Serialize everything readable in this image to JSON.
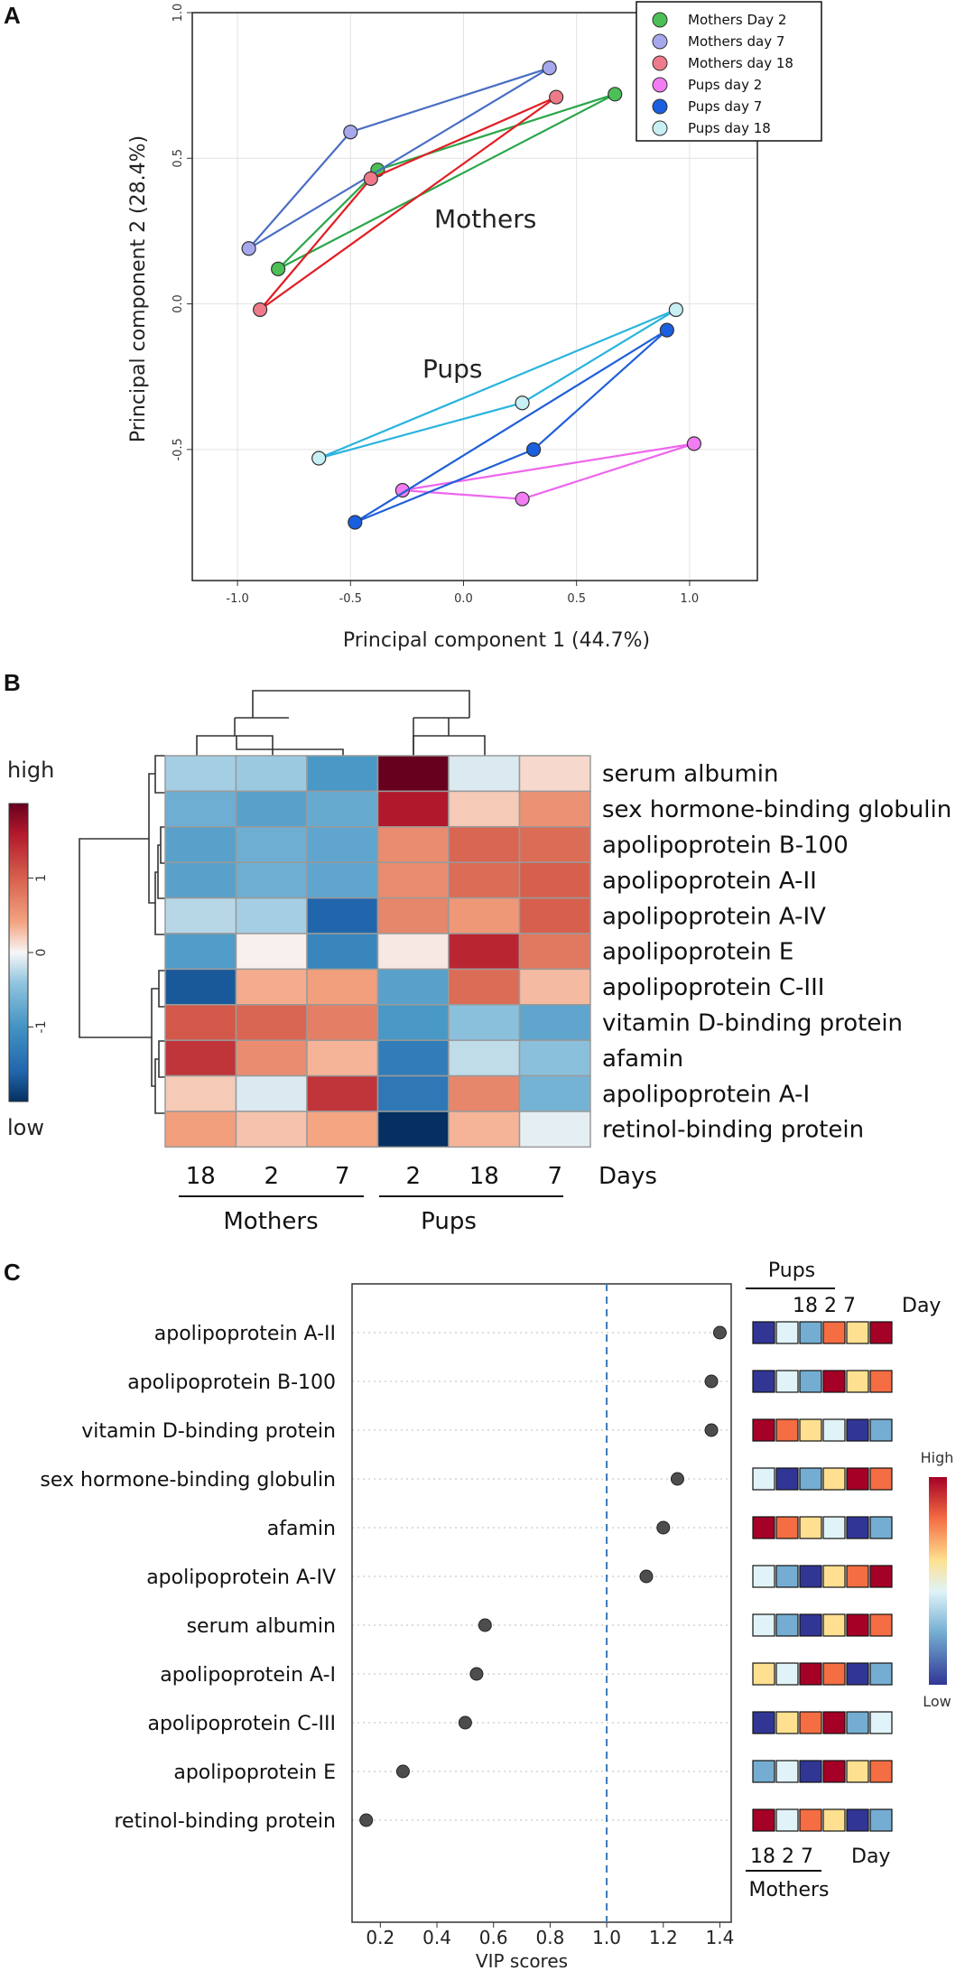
{
  "chart_data": [
    {
      "panel": "A",
      "type": "scatter",
      "xlabel": "Principal component 1 (44.7%)",
      "ylabel": "Principal component 2 (28.4%)",
      "xlim": [
        -1.2,
        1.3
      ],
      "ylim": [
        -0.95,
        1.0
      ],
      "xticks": [
        "-1.0",
        "-0.5",
        "0.0",
        "0.5",
        "1.0"
      ],
      "xtick_values": [
        -1.0,
        -0.5,
        0.0,
        0.5,
        1.0
      ],
      "yticks": [
        "-0.5",
        "0.0",
        "0.5",
        "1.0"
      ],
      "ytick_values": [
        -0.5,
        0.0,
        0.5,
        1.0
      ],
      "group_labels": [
        "Mothers",
        "Pups"
      ],
      "series": [
        {
          "name": "Mothers Day 2",
          "fill": "#4cc056",
          "line": "#2aa64a",
          "points": [
            [
              -0.82,
              0.12
            ],
            [
              -0.38,
              0.46
            ],
            [
              0.67,
              0.72
            ]
          ]
        },
        {
          "name": "Mothers day 7",
          "fill": "#a6a8ee",
          "line": "#4a6ec4",
          "points": [
            [
              -0.95,
              0.19
            ],
            [
              -0.5,
              0.59
            ],
            [
              0.38,
              0.81
            ]
          ]
        },
        {
          "name": "Mothers day 18",
          "fill": "#ef7a8a",
          "line": "#e01e24",
          "points": [
            [
              -0.9,
              -0.02
            ],
            [
              -0.41,
              0.43
            ],
            [
              0.41,
              0.71
            ]
          ]
        },
        {
          "name": "Pups day 2",
          "fill": "#f27cf2",
          "line": "#ee66ee",
          "points": [
            [
              -0.27,
              -0.64
            ],
            [
              0.26,
              -0.67
            ],
            [
              1.02,
              -0.48
            ]
          ]
        },
        {
          "name": "Pups day 7",
          "fill": "#1a5fe0",
          "line": "#2060d8",
          "points": [
            [
              -0.48,
              -0.75
            ],
            [
              0.31,
              -0.5
            ],
            [
              0.9,
              -0.09
            ]
          ]
        },
        {
          "name": "Pups day 18",
          "fill": "#c8f0f4",
          "line": "#2bb4dd",
          "points": [
            [
              -0.64,
              -0.53
            ],
            [
              0.26,
              -0.34
            ],
            [
              0.94,
              -0.02
            ]
          ]
        }
      ]
    },
    {
      "panel": "B",
      "type": "heatmap",
      "rows": [
        "serum albumin",
        "sex hormone-binding globulin",
        "apolipoprotein B-100",
        "apolipoprotein A-II",
        "apolipoprotein A-IV",
        "apolipoprotein E",
        "apolipoprotein C-III",
        "vitamin D-binding protein",
        "afamin",
        "apolipoprotein A-I",
        "retinol-binding protein"
      ],
      "columns": [
        "18",
        "2",
        "7",
        "2",
        "18",
        "7"
      ],
      "column_axis_label": "Days",
      "column_groups": [
        {
          "name": "Mothers",
          "span": [
            0,
            2
          ]
        },
        {
          "name": "Pups",
          "span": [
            3,
            5
          ]
        }
      ],
      "values": [
        [
          -0.45,
          -0.5,
          -1.05,
          2.0,
          -0.15,
          0.2
        ],
        [
          -0.8,
          -0.95,
          -0.85,
          1.6,
          0.3,
          0.7
        ],
        [
          -0.95,
          -0.8,
          -0.9,
          0.75,
          1.05,
          1.0
        ],
        [
          -0.95,
          -0.8,
          -0.9,
          0.75,
          1.0,
          1.1
        ],
        [
          -0.35,
          -0.45,
          -1.6,
          0.8,
          0.65,
          1.1
        ],
        [
          -1.0,
          0.05,
          -1.25,
          0.1,
          1.5,
          0.9
        ],
        [
          -1.7,
          0.5,
          0.6,
          -0.95,
          1.0,
          0.4
        ],
        [
          1.15,
          1.05,
          0.85,
          -1.05,
          -0.6,
          -0.9
        ],
        [
          1.4,
          0.75,
          0.45,
          -1.35,
          -0.3,
          -0.6
        ],
        [
          0.3,
          -0.15,
          1.4,
          -1.4,
          0.8,
          -0.75
        ],
        [
          0.6,
          0.35,
          0.55,
          -2.2,
          0.45,
          -0.1
        ]
      ],
      "scale": {
        "high_label": "high",
        "low_label": "low",
        "ticks": [
          "1",
          "0",
          "-1"
        ],
        "tick_values": [
          1,
          0,
          -1
        ],
        "range": [
          -2,
          2
        ]
      }
    },
    {
      "panel": "C",
      "type": "scatter",
      "xlabel": "VIP scores",
      "xticks": [
        "0.2",
        "0.4",
        "0.6",
        "0.8",
        "1.0",
        "1.2",
        "1.4"
      ],
      "xtick_values": [
        0.2,
        0.4,
        0.6,
        0.8,
        1.0,
        1.2,
        1.4
      ],
      "xlim": [
        0.1,
        1.44
      ],
      "threshold": 1.0,
      "proteins": [
        "apolipoprotein A-II",
        "apolipoprotein B-100",
        "vitamin D-binding protein",
        "sex hormone-binding globulin",
        "afamin",
        "apolipoprotein A-IV",
        "serum albumin",
        "apolipoprotein A-I",
        "apolipoprotein C-III",
        "apolipoprotein E",
        "retinol-binding protein"
      ],
      "vip": [
        1.4,
        1.37,
        1.37,
        1.25,
        1.2,
        1.14,
        0.57,
        0.54,
        0.5,
        0.28,
        0.15
      ],
      "mini_heatmap": {
        "group_labels": [
          "Pups",
          "Mothers"
        ],
        "pups_days": "18 2 7",
        "mothers_days": "18 2 7",
        "day_label": "Day",
        "key_high": "High",
        "key_low": "Low",
        "levels": [
          [
            1,
            3,
            2,
            5,
            4,
            6
          ],
          [
            1,
            3,
            2,
            6,
            4,
            5
          ],
          [
            6,
            5,
            4,
            3,
            1,
            2
          ],
          [
            3,
            1,
            2,
            4,
            6,
            5
          ],
          [
            6,
            5,
            4,
            3,
            1,
            2
          ],
          [
            3,
            2,
            1,
            4,
            5,
            6
          ],
          [
            3,
            2,
            1,
            4,
            6,
            5
          ],
          [
            4,
            3,
            6,
            5,
            1,
            2
          ],
          [
            1,
            4,
            5,
            6,
            2,
            3
          ],
          [
            2,
            3,
            1,
            6,
            4,
            5
          ],
          [
            6,
            3,
            5,
            4,
            1,
            2
          ]
        ]
      }
    }
  ],
  "panels": {
    "a": "A",
    "b": "B",
    "c": "C"
  },
  "colors": {
    "grid": "#e2e2e2",
    "threshold": "#3a78b8",
    "dot": "#4d4d4d"
  }
}
